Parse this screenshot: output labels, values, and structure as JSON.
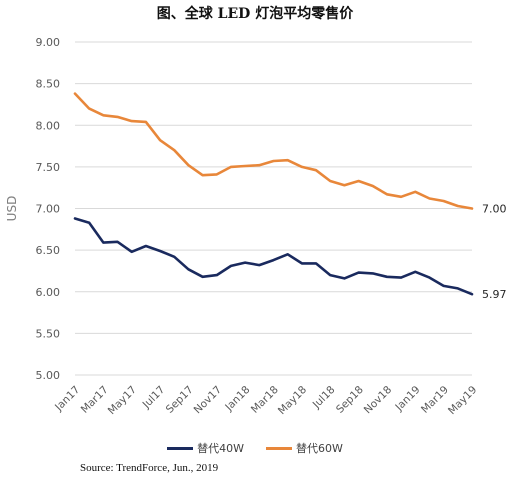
{
  "title": "图、全球 LED 灯泡平均零售价",
  "source": "Source: TrendForce, Jun., 2019",
  "colors": {
    "series1": "#1a2a5e",
    "series2": "#e8873a",
    "grid": "#d9d9d9",
    "axis_text": "#595959"
  },
  "chart_data": {
    "type": "line",
    "title": "图、全球 LED 灯泡平均零售价",
    "xlabel": "",
    "ylabel": "USD",
    "ylim": [
      5.0,
      9.0
    ],
    "yticks": [
      "9.00",
      "8.50",
      "8.00",
      "7.50",
      "7.00",
      "6.50",
      "6.00",
      "5.50",
      "5.00"
    ],
    "grid": true,
    "legend_position": "bottom",
    "x_tick_labels": [
      "Jan17",
      "Mar17",
      "May17",
      "Jul17",
      "Sep17",
      "Nov17",
      "Jan18",
      "Mar18",
      "May18",
      "Jul18",
      "Sep18",
      "Nov18",
      "Jan19",
      "Mar19",
      "May19"
    ],
    "x": [
      "Jan17",
      "Feb17",
      "Mar17",
      "Apr17",
      "May17",
      "Jun17",
      "Jul17",
      "Aug17",
      "Sep17",
      "Oct17",
      "Nov17",
      "Dec17",
      "Jan18",
      "Feb18",
      "Mar18",
      "Apr18",
      "May18",
      "Jun18",
      "Jul18",
      "Aug18",
      "Sep18",
      "Oct18",
      "Nov18",
      "Dec18",
      "Jan19",
      "Feb19",
      "Mar19",
      "Apr19",
      "May19"
    ],
    "series": [
      {
        "name": "替代40W",
        "end_label": "5.97",
        "values": [
          6.88,
          6.83,
          6.59,
          6.6,
          6.48,
          6.55,
          6.49,
          6.42,
          6.27,
          6.18,
          6.2,
          6.31,
          6.35,
          6.32,
          6.38,
          6.45,
          6.34,
          6.34,
          6.2,
          6.16,
          6.23,
          6.22,
          6.18,
          6.17,
          6.24,
          6.17,
          6.07,
          6.04,
          5.97
        ]
      },
      {
        "name": "替代60W",
        "end_label": "7.00",
        "values": [
          8.38,
          8.2,
          8.12,
          8.1,
          8.05,
          8.04,
          7.82,
          7.7,
          7.52,
          7.4,
          7.41,
          7.5,
          7.51,
          7.52,
          7.57,
          7.58,
          7.5,
          7.46,
          7.33,
          7.28,
          7.33,
          7.27,
          7.17,
          7.14,
          7.2,
          7.12,
          7.09,
          7.03,
          7.0
        ]
      }
    ]
  }
}
